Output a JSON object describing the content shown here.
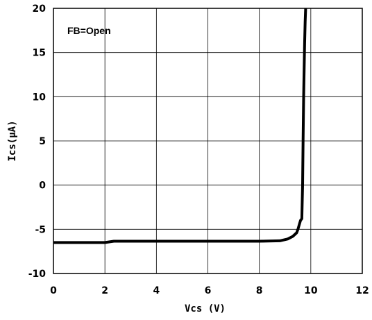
{
  "chart_data": {
    "type": "line",
    "title": "",
    "xlabel": "Vcs (V)",
    "ylabel": "Ics(μA)",
    "xlim": [
      0,
      12
    ],
    "ylim": [
      -10,
      20
    ],
    "x_ticks": [
      0,
      2,
      4,
      6,
      8,
      10,
      12
    ],
    "y_ticks": [
      -10,
      -5,
      0,
      5,
      10,
      15,
      20
    ],
    "x_tick_labels": [
      "0",
      "2",
      "4",
      "6",
      "8",
      "10",
      "12"
    ],
    "y_tick_labels": [
      "-10",
      "-5",
      "0",
      "5",
      "10",
      "15",
      "20"
    ],
    "grid": true,
    "annotation": "FB=Open",
    "series": [
      {
        "x": [
          0,
          2.0,
          2.35,
          4.0,
          6.0,
          8.0,
          8.8,
          9.1,
          9.3,
          9.45,
          9.5,
          9.55,
          9.6,
          9.65,
          9.68,
          9.7,
          9.72,
          9.74,
          9.76,
          9.78,
          9.8
        ],
        "y": [
          -6.5,
          -6.5,
          -6.35,
          -6.35,
          -6.35,
          -6.35,
          -6.3,
          -6.1,
          -5.8,
          -5.4,
          -5.0,
          -4.5,
          -4.0,
          -3.8,
          0,
          5.0,
          10.0,
          13.0,
          16.0,
          18.5,
          20.0
        ]
      }
    ]
  }
}
